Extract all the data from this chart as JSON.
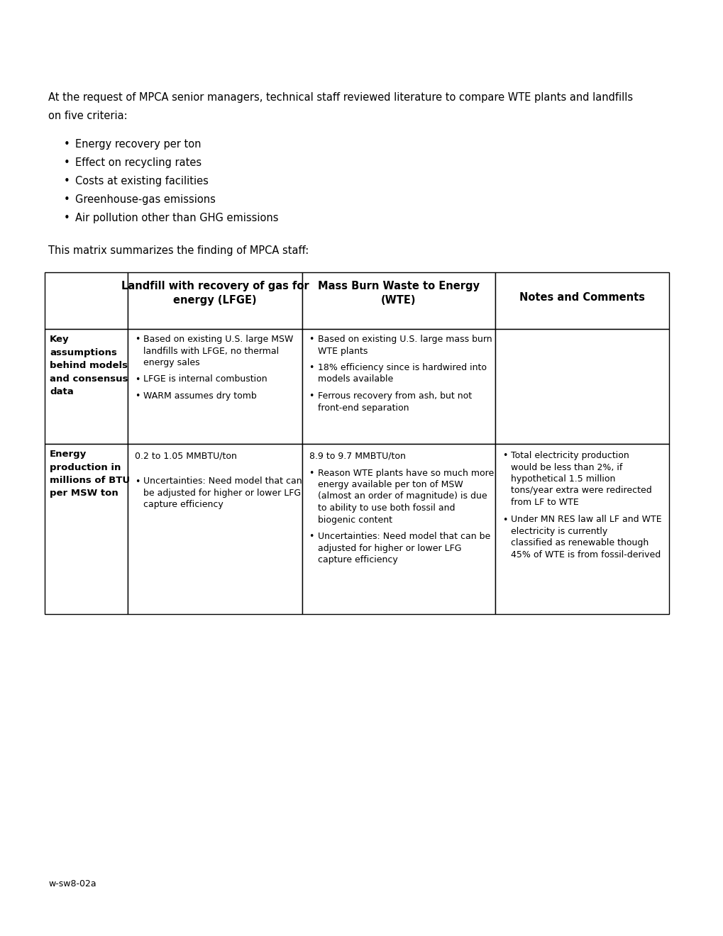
{
  "bg_color": "#ffffff",
  "text_color": "#000000",
  "intro_line1": "At the request of MPCA senior managers, technical staff reviewed literature to compare WTE plants and landfills",
  "intro_line2": "on five criteria:",
  "bullets": [
    "Energy recovery per ton",
    "Effect on recycling rates",
    "Costs at existing facilities",
    "Greenhouse-gas emissions",
    "Air pollution other than GHG emissions"
  ],
  "matrix_intro": "This matrix summarizes the finding of MPCA staff:",
  "col_header1": "Landfill with recovery of gas for\nenergy (LFGE)",
  "col_header2": "Mass Burn Waste to Energy\n(WTE)",
  "col_header3": "Notes and Comments",
  "row1_label": "Key\nassumptions\nbehind models\nand consensus\ndata",
  "row1_lfge": [
    "Based on existing U.S. large MSW landfills with LFGE, no thermal energy sales",
    "LFGE is internal combustion",
    "WARM assumes dry tomb"
  ],
  "row1_wte": [
    "Based on existing U.S. large mass burn WTE plants",
    "18% efficiency since is hardwired into models available",
    "Ferrous recovery from ash, but not front-end separation"
  ],
  "row2_label": "Energy\nproduction in\nmillions of BTU\nper MSW ton",
  "row2_lfge_header": "0.2 to 1.05 MMBTU/ton",
  "row2_lfge_bullets": [
    "Uncertainties: Need model that can be adjusted for higher or lower LFG capture efficiency"
  ],
  "row2_wte_header": "8.9 to 9.7 MMBTU/ton",
  "row2_wte_bullets": [
    "Reason WTE plants have so much more energy available per ton of MSW (almost an order of magnitude)   is due to ability to use both fossil and biogenic content",
    "Uncertainties: Need model that can be adjusted for higher or lower LFG capture efficiency"
  ],
  "row2_notes_bullets": [
    "Total electricity production would be less than 2%, if hypothetical 1.5 million tons/year extra were redirected from LF to WTE",
    "Under MN RES law all LF and WTE electricity is currently classified as renewable though 45% of WTE is from fossil-derived"
  ],
  "footer": "w-sw8-02a",
  "font_size_body": 10.5,
  "font_size_cell": 9.0,
  "font_size_header": 10.5
}
